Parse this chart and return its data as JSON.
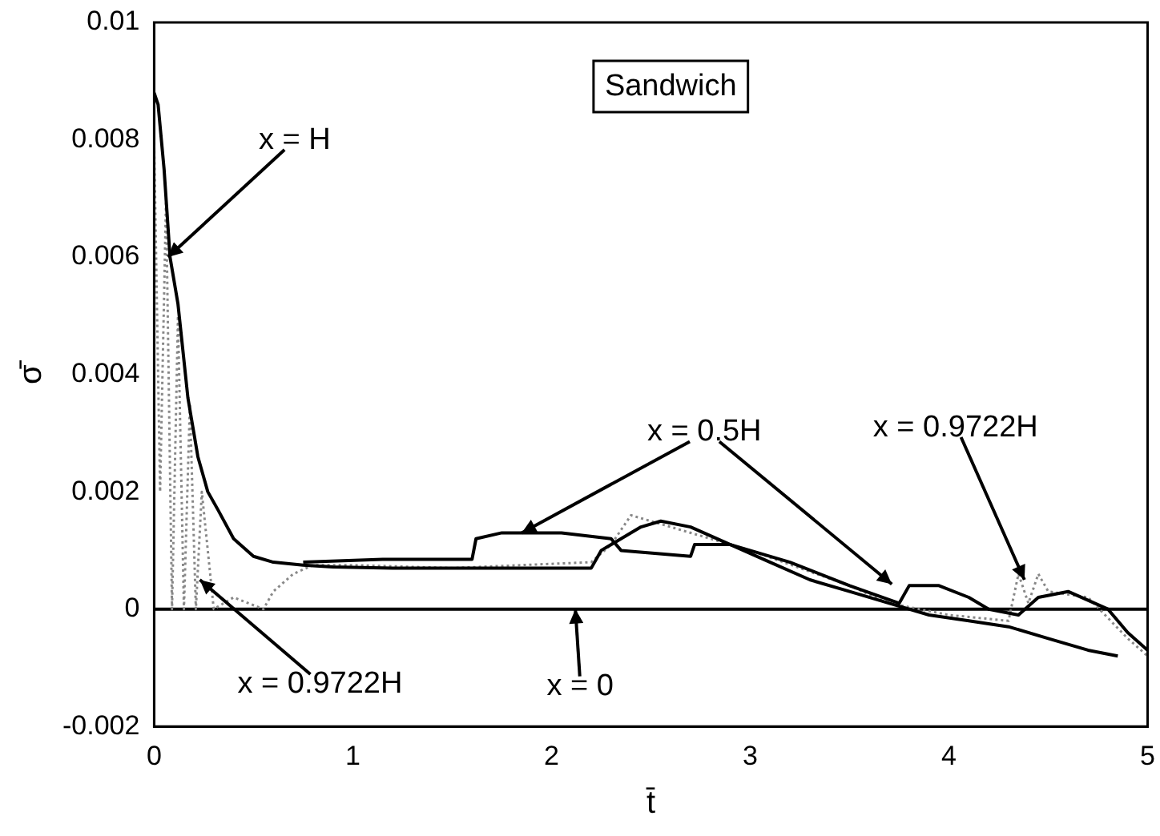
{
  "chart_data": {
    "type": "line",
    "xlabel": "t̄",
    "ylabel": "σ̄",
    "xlim": [
      0,
      5
    ],
    "xticks": [
      0,
      1,
      2,
      3,
      4,
      5
    ],
    "ylim": [
      -0.002,
      0.01
    ],
    "yticks": [
      -0.002,
      0,
      0.002,
      0.004,
      0.006,
      0.008,
      0.01
    ],
    "grid": false,
    "legend": false,
    "marker": "none",
    "series": [
      {
        "color": "#000000",
        "line_style": "solid",
        "x": [
          0,
          0.02,
          0.05,
          0.08,
          0.12,
          0.17,
          0.22,
          0.27,
          0.32,
          0.4,
          0.5,
          0.6,
          0.75,
          0.9,
          1.2,
          1.6,
          2.0,
          2.2,
          2.25,
          2.35,
          2.45,
          2.55,
          2.7,
          2.9,
          3.1,
          3.3,
          3.5,
          3.7,
          3.9,
          4.1,
          4.3,
          4.5,
          4.7,
          4.85
        ],
        "values": [
          0.0088,
          0.0086,
          0.0075,
          0.006,
          0.0052,
          0.0036,
          0.0026,
          0.002,
          0.0017,
          0.0012,
          0.0009,
          0.0008,
          0.00075,
          0.00072,
          0.0007,
          0.0007,
          0.0007,
          0.0007,
          0.001,
          0.0012,
          0.0014,
          0.0015,
          0.0014,
          0.0011,
          0.0008,
          0.0005,
          0.0003,
          0.0001,
          -0.0001,
          -0.0002,
          -0.0003,
          -0.0005,
          -0.0007,
          -0.0008
        ]
      },
      {
        "color": "#000000",
        "line_style": "solid",
        "x": [
          0.75,
          1.15,
          1.6,
          1.62,
          1.75,
          2.05,
          2.3,
          2.35,
          2.7,
          2.72,
          2.9,
          3.2,
          3.5,
          3.75,
          3.8,
          3.95,
          4.1,
          4.2,
          4.35,
          4.45,
          4.6,
          4.8,
          4.9,
          5
        ],
        "values": [
          0.0008,
          0.00085,
          0.00085,
          0.0012,
          0.0013,
          0.0013,
          0.0012,
          0.001,
          0.0009,
          0.0011,
          0.0011,
          0.0008,
          0.0004,
          0.0001,
          0.0004,
          0.0004,
          0.0002,
          0,
          -0.0001,
          0.0002,
          0.0003,
          0,
          -0.0004,
          -0.0007
        ]
      },
      {
        "color": "#888888",
        "line_style": "dotted",
        "x": [
          0,
          0.03,
          0.06,
          0.09,
          0.12,
          0.15,
          0.18,
          0.21,
          0.24,
          0.3,
          0.4,
          0.55,
          0.6,
          0.7,
          0.8,
          1.0,
          1.5,
          2.2,
          2.3,
          2.4,
          2.5,
          2.6,
          3.0,
          3.5,
          3.7,
          4.0,
          4.3,
          4.35,
          4.4,
          4.45,
          4.5,
          4.7,
          4.9,
          5
        ],
        "values": [
          0.008,
          0.002,
          0.007,
          0,
          0.005,
          0,
          0.0035,
          0,
          0.002,
          0,
          0.0002,
          0,
          0.0003,
          0.0006,
          0.00075,
          0.00075,
          0.0007,
          0.0008,
          0.0011,
          0.0016,
          0.0015,
          0.0014,
          0.001,
          0.0004,
          0.0001,
          -0.0001,
          -0.0002,
          0.0006,
          0.0001,
          0.0006,
          0.0003,
          0.0002,
          -0.0005,
          -0.0008
        ]
      },
      {
        "color": "#000000",
        "line_style": "solid",
        "x": [
          0,
          5
        ],
        "values": [
          0,
          0
        ]
      }
    ],
    "annotations": [
      "Sandwich",
      {
        "text": "x = H",
        "x": 0.07,
        "y": 0.006
      },
      {
        "text": "x = 0.5H",
        "x": 1.85,
        "y": 0.0013
      },
      {
        "text": "x = 0.9722H",
        "x": 4.38,
        "y": 0.0005
      },
      {
        "text": "x = 0.9722H",
        "x": 0.23,
        "y": 0.0005
      },
      {
        "text": "x = 0",
        "x": 2.12,
        "y": 0
      }
    ]
  }
}
